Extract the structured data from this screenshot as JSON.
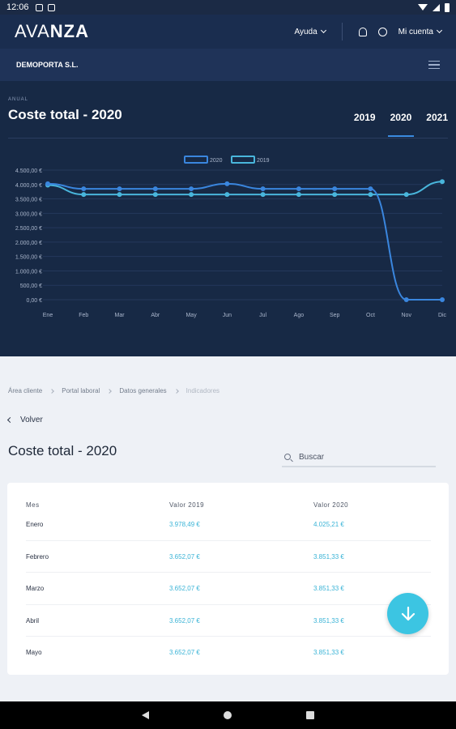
{
  "status": {
    "time": "12:06"
  },
  "header": {
    "logo_thin": "AVA",
    "logo_bold": "NZA",
    "help_label": "Ayuda",
    "account_label": "Mi cuenta"
  },
  "company": {
    "name": "DEMOPORTA S.L."
  },
  "chart_panel": {
    "kicker": "ANUAL",
    "title": "Coste total - 2020",
    "year_tabs": [
      "2019",
      "2020",
      "2021"
    ],
    "active_year": "2020"
  },
  "chart_data": {
    "type": "line",
    "categories": [
      "Ene",
      "Feb",
      "Mar",
      "Abr",
      "May",
      "Jun",
      "Jul",
      "Ago",
      "Sep",
      "Oct",
      "Nov",
      "Dic"
    ],
    "series": [
      {
        "name": "2020",
        "color": "#3a86de",
        "values": [
          4025.21,
          3851.33,
          3851.33,
          3851.33,
          3851.33,
          4025.21,
          3851.33,
          3851.33,
          3851.33,
          3851.33,
          0,
          0
        ]
      },
      {
        "name": "2019",
        "color": "#49b6dc",
        "values": [
          3978.49,
          3652.07,
          3652.07,
          3652.07,
          3652.07,
          3652.07,
          3652.07,
          3652.07,
          3652.07,
          3652.07,
          3652.07,
          4100
        ]
      }
    ],
    "yticks": [
      "4.500,00 €",
      "4.000,00 €",
      "3.500,00 €",
      "3.000,00 €",
      "2.500,00 €",
      "2.000,00 €",
      "1.500,00 €",
      "1.000,00 €",
      "500,00 €",
      "0,00 €"
    ],
    "ylim": [
      0,
      4500
    ],
    "legend": "top-center",
    "grid": true
  },
  "breadcrumbs": [
    "Área cliente",
    "Portal laboral",
    "Datos generales",
    "Indicadores"
  ],
  "back_label": "Volver",
  "page_title": "Coste total - 2020",
  "search": {
    "placeholder": "Buscar"
  },
  "table": {
    "headers": [
      "Mes",
      "Valor 2019",
      "Valor 2020"
    ],
    "rows": [
      {
        "mes": "Enero",
        "v2019": "3.978,49 €",
        "v2020": "4.025,21 €"
      },
      {
        "mes": "Febrero",
        "v2019": "3.652,07 €",
        "v2020": "3.851,33 €"
      },
      {
        "mes": "Marzo",
        "v2019": "3.652,07 €",
        "v2020": "3.851,33 €"
      },
      {
        "mes": "Abril",
        "v2019": "3.652,07 €",
        "v2020": "3.851,33 €"
      },
      {
        "mes": "Mayo",
        "v2019": "3.652,07 €",
        "v2020": "3.851,33 €"
      }
    ]
  },
  "colors": {
    "accent": "#3cc5e2",
    "header": "#1a2d4f",
    "panel": "#172945"
  },
  "icons": {
    "fab": "arrow-down-icon",
    "search": "search-icon",
    "menu": "hamburger-icon"
  }
}
